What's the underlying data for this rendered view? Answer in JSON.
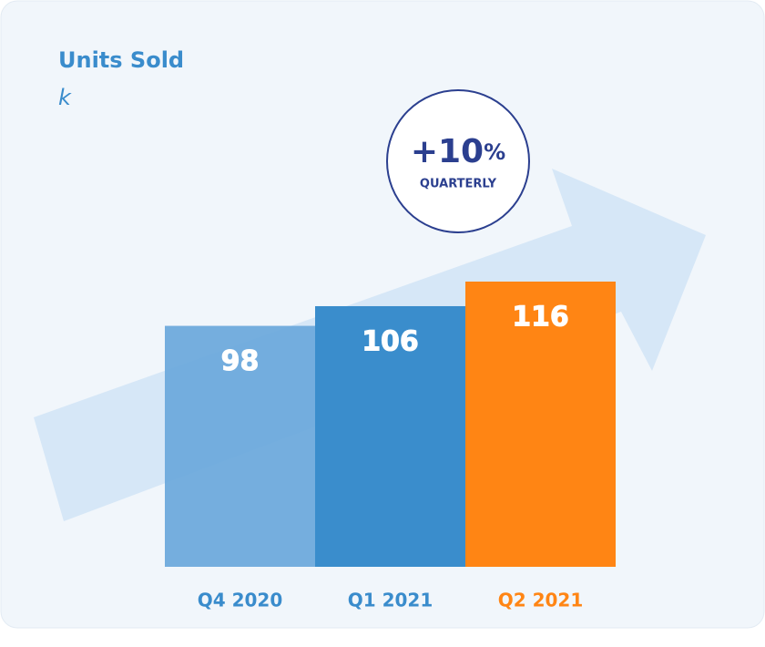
{
  "chart_data": {
    "type": "bar",
    "title": "Units Sold",
    "subtitle": "k",
    "categories": [
      "Q4 2020",
      "Q1 2021",
      "Q2 2021"
    ],
    "values": [
      98,
      106,
      116
    ],
    "colors": [
      "#6eaadc",
      "#3a8dcc",
      "#ff8514"
    ],
    "label_colors": [
      "#3a8ccc",
      "#3a8ccc",
      "#ff8514"
    ],
    "badge": {
      "text": "+10",
      "unit": "%",
      "caption": "QUARTERLY"
    }
  }
}
